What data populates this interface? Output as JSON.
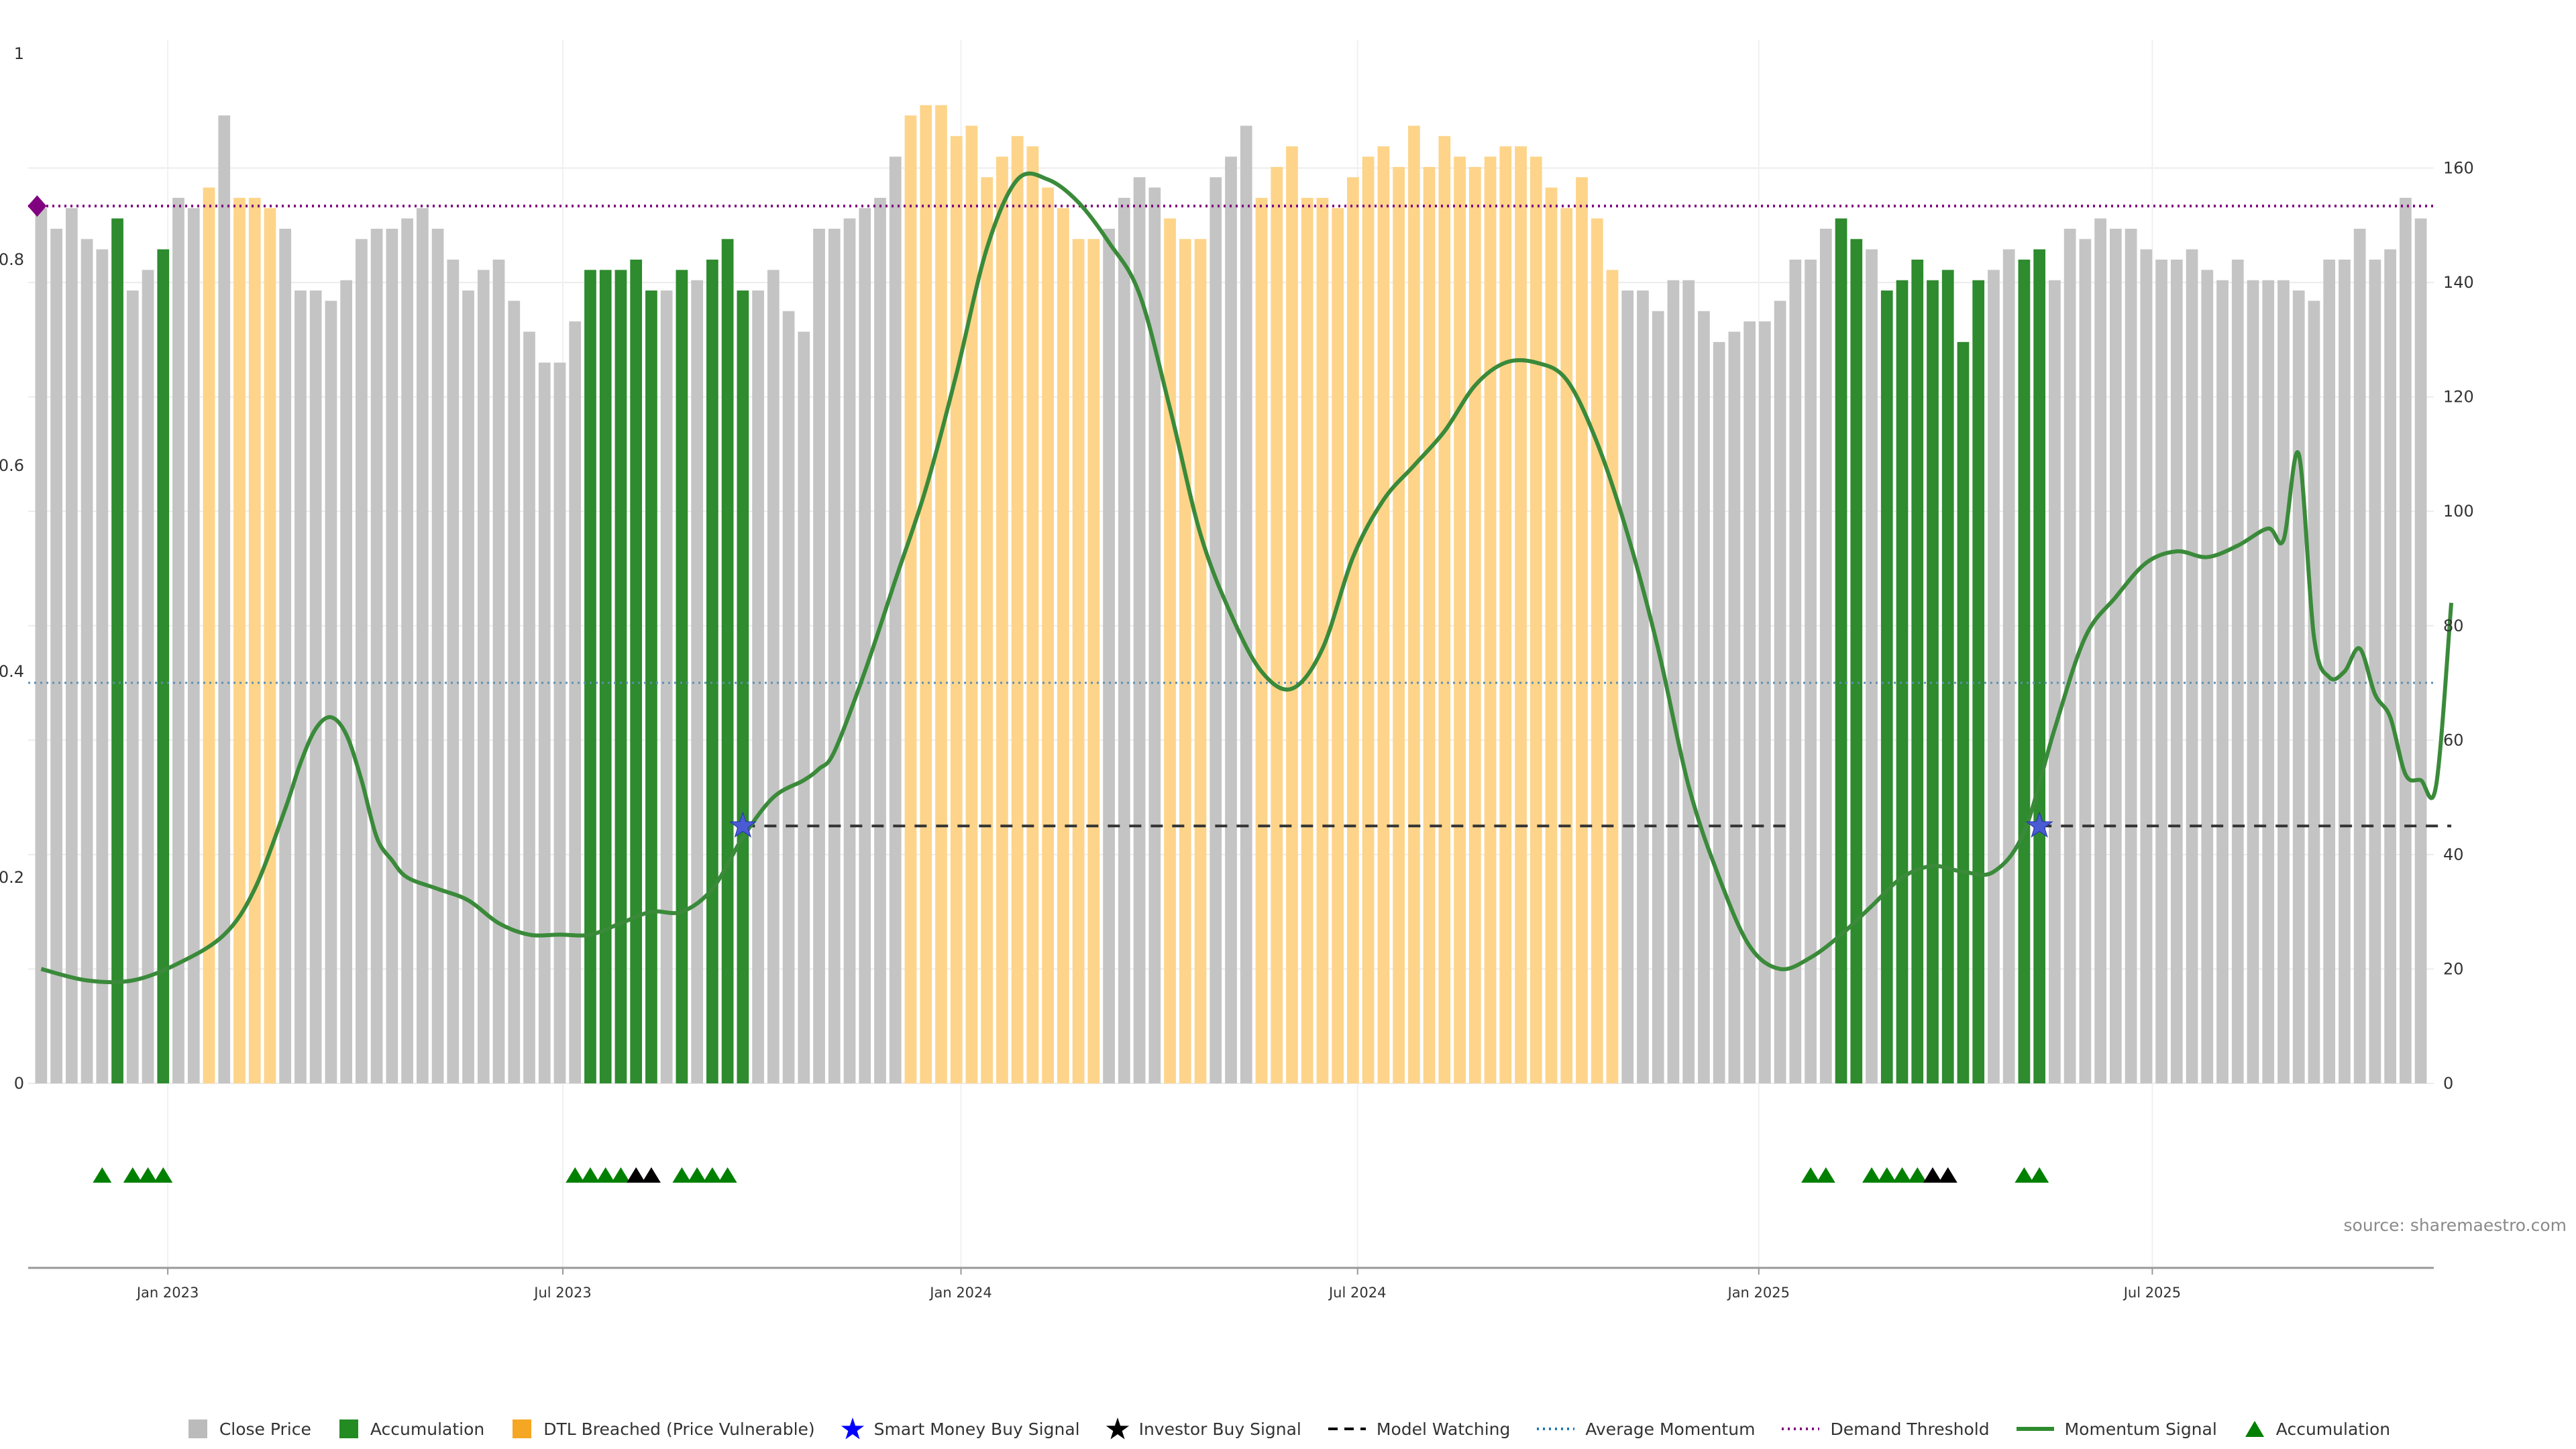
{
  "chart_data": {
    "type": "bar",
    "x_tick_labels": [
      "Jan 2023",
      "Jul 2023",
      "Jan 2024",
      "Jul 2024",
      "Jan 2025",
      "Jul 2025"
    ],
    "left_axis": {
      "ylim": [
        0,
        1
      ],
      "ticks": [
        "0",
        "0.2",
        "0.4",
        "0.6",
        "0.8",
        "1"
      ]
    },
    "right_axis": {
      "ylim": [
        0,
        180
      ],
      "ticks": [
        "0",
        "20",
        "40",
        "60",
        "80",
        "100",
        "120",
        "140",
        "160"
      ]
    },
    "price_series": {
      "name": "Close Price",
      "values": [
        0.85,
        0.83,
        0.85,
        0.82,
        0.81,
        0.84,
        0.77,
        0.79,
        0.81,
        0.86,
        0.85,
        0.87,
        0.94,
        0.86,
        0.86,
        0.85,
        0.83,
        0.77,
        0.77,
        0.76,
        0.78,
        0.82,
        0.83,
        0.83,
        0.84,
        0.85,
        0.83,
        0.8,
        0.77,
        0.79,
        0.8,
        0.76,
        0.73,
        0.7,
        0.7,
        0.74,
        0.79,
        0.79,
        0.79,
        0.8,
        0.77,
        0.77,
        0.79,
        0.78,
        0.8,
        0.82,
        0.77,
        0.77,
        0.79,
        0.75,
        0.73,
        0.83,
        0.83,
        0.84,
        0.85,
        0.86,
        0.9,
        0.94,
        0.95,
        0.95,
        0.92,
        0.93,
        0.88,
        0.9,
        0.92,
        0.91,
        0.87,
        0.85,
        0.82,
        0.82,
        0.83,
        0.86,
        0.88,
        0.87,
        0.84,
        0.82,
        0.82,
        0.88,
        0.9,
        0.93,
        0.86,
        0.89,
        0.91,
        0.86,
        0.86,
        0.85,
        0.88,
        0.9,
        0.91,
        0.89,
        0.93,
        0.89,
        0.92,
        0.9,
        0.89,
        0.9,
        0.91,
        0.91,
        0.9,
        0.87,
        0.85,
        0.88,
        0.84,
        0.79,
        0.77,
        0.77,
        0.75,
        0.78,
        0.78,
        0.75,
        0.72,
        0.73,
        0.74,
        0.74,
        0.76,
        0.8,
        0.8,
        0.83,
        0.84,
        0.82,
        0.81,
        0.77,
        0.78,
        0.8,
        0.78,
        0.79,
        0.72,
        0.78,
        0.79,
        0.81,
        0.8,
        0.81,
        0.78,
        0.83,
        0.82,
        0.84,
        0.83,
        0.83,
        0.81,
        0.8,
        0.8,
        0.81,
        0.79,
        0.78,
        0.8,
        0.78,
        0.78,
        0.78,
        0.77,
        0.76,
        0.8,
        0.8,
        0.83,
        0.8,
        0.81,
        0.86,
        0.84
      ],
      "bar_state": "GGGGGAGGAGGOGOOOGGGGGGGGGGGGGGGGGGGGAAAAAGAGAAAGGGGGGGGGGOOOOOOOOOOOOOGGGGOOOGGGOOOOOOOOOOOOOOOOOOOOOOOOGGGGGGGGGGGGGGAAGAAAAAAAGGAAGGGGGGGGGGGGGGGGGGGGGGGGGGGOG",
      "legend_states": {
        "G": "Close Price",
        "A": "Accumulation",
        "O": "DTL Breached (Price Vulnerable)"
      }
    },
    "momentum_series": {
      "name": "Momentum Signal",
      "points": [
        [
          0,
          20
        ],
        [
          3,
          18
        ],
        [
          6,
          18
        ],
        [
          9,
          21
        ],
        [
          12,
          26
        ],
        [
          14,
          34
        ],
        [
          16,
          48
        ],
        [
          17,
          56
        ],
        [
          18,
          62
        ],
        [
          19,
          64
        ],
        [
          20,
          61
        ],
        [
          21,
          53
        ],
        [
          22,
          43
        ],
        [
          23,
          39
        ],
        [
          24,
          36
        ],
        [
          26,
          34
        ],
        [
          28,
          32
        ],
        [
          30,
          28
        ],
        [
          32,
          26
        ],
        [
          34,
          26
        ],
        [
          36,
          26
        ],
        [
          38,
          28
        ],
        [
          40,
          30
        ],
        [
          42,
          30
        ],
        [
          44,
          34
        ],
        [
          46,
          43
        ],
        [
          48,
          50
        ],
        [
          50,
          53
        ],
        [
          51,
          55
        ],
        [
          52,
          58
        ],
        [
          54,
          72
        ],
        [
          56,
          88
        ],
        [
          58,
          104
        ],
        [
          60,
          124
        ],
        [
          62,
          146
        ],
        [
          64,
          158
        ],
        [
          66,
          158
        ],
        [
          68,
          154
        ],
        [
          70,
          147
        ],
        [
          72,
          138
        ],
        [
          74,
          118
        ],
        [
          76,
          96
        ],
        [
          78,
          82
        ],
        [
          80,
          72
        ],
        [
          82,
          69
        ],
        [
          84,
          76
        ],
        [
          86,
          92
        ],
        [
          88,
          102
        ],
        [
          90,
          108
        ],
        [
          92,
          114
        ],
        [
          94,
          122
        ],
        [
          96,
          126
        ],
        [
          98,
          126
        ],
        [
          100,
          123
        ],
        [
          102,
          112
        ],
        [
          104,
          96
        ],
        [
          106,
          76
        ],
        [
          108,
          52
        ],
        [
          110,
          36
        ],
        [
          112,
          24
        ],
        [
          114,
          20
        ],
        [
          116,
          22
        ],
        [
          118,
          26
        ],
        [
          120,
          31
        ],
        [
          122,
          36
        ],
        [
          124,
          38
        ],
        [
          126,
          37
        ],
        [
          128,
          37
        ],
        [
          130,
          44
        ],
        [
          132,
          62
        ],
        [
          134,
          78
        ],
        [
          136,
          85
        ],
        [
          138,
          91
        ],
        [
          140,
          93
        ],
        [
          142,
          92
        ],
        [
          144,
          94
        ],
        [
          146,
          97
        ],
        [
          147,
          95
        ],
        [
          148,
          110
        ],
        [
          149,
          78
        ],
        [
          150,
          71
        ],
        [
          151,
          72
        ],
        [
          152,
          76
        ],
        [
          153,
          68
        ],
        [
          154,
          64
        ],
        [
          155,
          54
        ],
        [
          156,
          53
        ],
        [
          157,
          52
        ],
        [
          158,
          84
        ]
      ]
    },
    "thresholds": {
      "demand_threshold": 0.852,
      "average_momentum": 0.389,
      "model_watching": 0.25,
      "model_watching_from": [
        46,
        131
      ]
    },
    "signals": {
      "smart_money_buy": [
        [
          46,
          0.25
        ],
        [
          131,
          0.25
        ]
      ],
      "demand_marker": [
        0,
        0.852
      ],
      "accumulation_markers": [
        4,
        6,
        7,
        8,
        35,
        36,
        37,
        38,
        42,
        43,
        44,
        45,
        116,
        117,
        120,
        121,
        122,
        123,
        130,
        131
      ],
      "investor_markers": [
        39,
        40,
        124,
        125
      ]
    },
    "legend": [
      {
        "label": "Close Price",
        "kind": "square",
        "color": "#bbbbbb"
      },
      {
        "label": "Accumulation",
        "kind": "square",
        "color": "#228b22"
      },
      {
        "label": "DTL Breached (Price Vulnerable)",
        "kind": "square",
        "color": "#f5a623"
      },
      {
        "label": "Smart Money Buy Signal",
        "kind": "star",
        "color": "#0000ff"
      },
      {
        "label": "Investor Buy Signal",
        "kind": "star",
        "color": "#000000"
      },
      {
        "label": "Model Watching",
        "kind": "dash",
        "color": "#000000"
      },
      {
        "label": "Average Momentum",
        "kind": "dot",
        "color": "#1f77b4"
      },
      {
        "label": "Demand Threshold",
        "kind": "dot",
        "color": "#800080"
      },
      {
        "label": "Momentum Signal",
        "kind": "line",
        "color": "#2e8b2e"
      },
      {
        "label": "Accumulation",
        "kind": "triangle",
        "color": "#008000"
      }
    ],
    "colors": {
      "close_price": "#c4c4c4",
      "accumulation": "#2e8b2e",
      "dtl_breached": "#fdd48a",
      "momentum": "#3a8a3a",
      "average_momentum": "#5a8fb5",
      "demand_threshold": "#800080",
      "model_watching": "#333333"
    },
    "source": "source: sharemaestro.com",
    "grid": true
  }
}
